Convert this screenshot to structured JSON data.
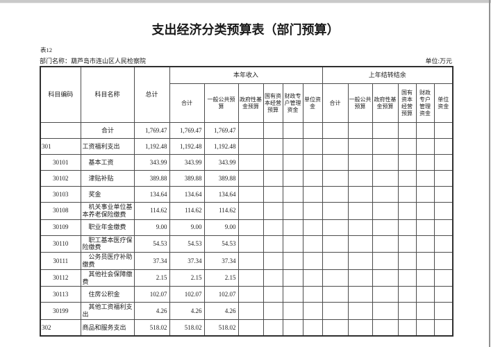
{
  "page": {
    "title": "支出经济分类预算表（部门预算）",
    "table_no": "表12",
    "department_label": "部门名称：葫芦岛市连山区人民检察院",
    "unit_label": "单位:万元"
  },
  "colors": {
    "page_background": "#ffffff",
    "text": "#1a1a1a",
    "grid_line": "#4a4a4a",
    "outer_border": "#2e2e2e",
    "top_edge_bar": "#c9c9c9",
    "right_edge_line": "#8f8f8f"
  },
  "table": {
    "headers": {
      "code": "科目编码",
      "name": "科目名称",
      "total": "总计",
      "group_current": "本年收入",
      "group_carryover": "上年结转结余",
      "sub_current": [
        "合计",
        "一般公共预算",
        "政府性基金预算",
        "国有资本经营预算",
        "财政专户管理资金",
        "单位资金"
      ],
      "sub_carryover": [
        "合计",
        "一般公共预算",
        "政府性基金预算",
        "国有资本经营预算",
        "财政专户管理资金",
        "单位资金"
      ]
    },
    "rows": [
      {
        "level": "total",
        "cells": [
          "",
          "合计",
          "1,769.47",
          "1,769.47",
          "1,769.47",
          "",
          "",
          "",
          "",
          "",
          "",
          "",
          "",
          "",
          ""
        ]
      },
      {
        "level": "parent",
        "cells": [
          "301",
          "工资福利支出",
          "1,192.48",
          "1,192.48",
          "1,192.48",
          "",
          "",
          "",
          "",
          "",
          "",
          "",
          "",
          "",
          ""
        ]
      },
      {
        "level": "child",
        "cells": [
          "30101",
          "基本工资",
          "343.99",
          "343.99",
          "343.99",
          "",
          "",
          "",
          "",
          "",
          "",
          "",
          "",
          "",
          ""
        ]
      },
      {
        "level": "child",
        "cells": [
          "30102",
          "津贴补贴",
          "389.88",
          "389.88",
          "389.88",
          "",
          "",
          "",
          "",
          "",
          "",
          "",
          "",
          "",
          ""
        ]
      },
      {
        "level": "child",
        "cells": [
          "30103",
          "奖金",
          "134.64",
          "134.64",
          "134.64",
          "",
          "",
          "",
          "",
          "",
          "",
          "",
          "",
          "",
          ""
        ]
      },
      {
        "level": "child",
        "cells": [
          "30108",
          "机关事业单位基本养老保险缴费",
          "114.62",
          "114.62",
          "114.62",
          "",
          "",
          "",
          "",
          "",
          "",
          "",
          "",
          "",
          ""
        ]
      },
      {
        "level": "child",
        "cells": [
          "30109",
          "职业年金缴费",
          "9.00",
          "9.00",
          "9.00",
          "",
          "",
          "",
          "",
          "",
          "",
          "",
          "",
          "",
          ""
        ]
      },
      {
        "level": "child",
        "cells": [
          "30110",
          "职工基本医疗保险缴费",
          "54.53",
          "54.53",
          "54.53",
          "",
          "",
          "",
          "",
          "",
          "",
          "",
          "",
          "",
          ""
        ]
      },
      {
        "level": "child",
        "cells": [
          "30111",
          "公务员医疗补助缴费",
          "37.34",
          "37.34",
          "37.34",
          "",
          "",
          "",
          "",
          "",
          "",
          "",
          "",
          "",
          ""
        ]
      },
      {
        "level": "child",
        "cells": [
          "30112",
          "其他社会保障缴费",
          "2.15",
          "2.15",
          "2.15",
          "",
          "",
          "",
          "",
          "",
          "",
          "",
          "",
          "",
          ""
        ]
      },
      {
        "level": "child",
        "cells": [
          "30113",
          "住房公积金",
          "102.07",
          "102.07",
          "102.07",
          "",
          "",
          "",
          "",
          "",
          "",
          "",
          "",
          "",
          ""
        ]
      },
      {
        "level": "child",
        "cells": [
          "30199",
          "其他工资福利支出",
          "4.26",
          "4.26",
          "4.26",
          "",
          "",
          "",
          "",
          "",
          "",
          "",
          "",
          "",
          ""
        ]
      },
      {
        "level": "parent",
        "cells": [
          "302",
          "商品和服务支出",
          "518.02",
          "518.02",
          "518.02",
          "",
          "",
          "",
          "",
          "",
          "",
          "",
          "",
          "",
          ""
        ]
      }
    ]
  }
}
